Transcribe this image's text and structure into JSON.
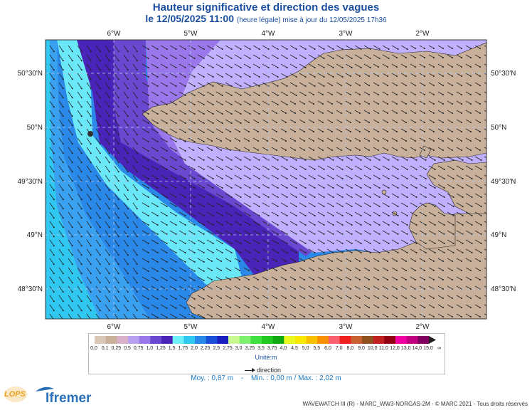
{
  "title": "Hauteur significative et direction des vagues",
  "subtitle": {
    "date": "le 12/05/2025 11:00",
    "note": "(heure légale) mise à jour du 12/05/2025 17h36"
  },
  "map": {
    "lon_labels": [
      "6°W",
      "5°W",
      "4°W",
      "3°W",
      "2°W"
    ],
    "lat_labels": [
      "50°30'N",
      "50°N",
      "49°30'N",
      "49°N",
      "48°30'N"
    ],
    "colors": {
      "land": "#c8b09a",
      "c1": "#c0b0ff",
      "c2": "#9a78ec",
      "c3": "#6a48d0",
      "c4": "#4a24b8",
      "c5": "#6ae8f8",
      "c6": "#30c8f0",
      "c7": "#3aa0f0",
      "c8": "#2a88e8",
      "grid": "#b8c8ee"
    }
  },
  "legend": {
    "scale": [
      "0,0",
      "0,1",
      "0,25",
      "0,5",
      "0,75",
      "1,0",
      "1,25",
      "1,5",
      "1,75",
      "2,0",
      "2,25",
      "2,5",
      "2,75",
      "3,0",
      "3,25",
      "3,5",
      "3,75",
      "4,0",
      "4,5",
      "5,0",
      "5,5",
      "6,0",
      "7,0",
      "8,0",
      "9,0",
      "10,0",
      "11,0",
      "12,0",
      "13,0",
      "14,0",
      "15,0",
      "∞"
    ],
    "colors": [
      "#d8c8b8",
      "#c8b09a",
      "#d8b0c8",
      "#b8a0f0",
      "#9a78ec",
      "#6a48d0",
      "#4a24b8",
      "#70f0f8",
      "#30c8f0",
      "#2a88e8",
      "#1a50d8",
      "#1a20c0",
      "#c8f890",
      "#80f070",
      "#40e040",
      "#20c820",
      "#10a810",
      "#e8f820",
      "#f8e800",
      "#f8c000",
      "#f89000",
      "#f86070",
      "#f02020",
      "#c86030",
      "#905020",
      "#c02020",
      "#900010",
      "#f000a0",
      "#c00080",
      "#800060"
    ],
    "unit": "Unité:m",
    "direction_label": "direction"
  },
  "stats": {
    "moy": "Moy. : 0,87 m",
    "sep": "-",
    "minmax": "Min. : 0,00 m / Max. : 2,02 m"
  },
  "footer": {
    "lops": "LOPS",
    "ifremer": "Ifremer",
    "copyright": "WAVEWATCH III (R) - MARC_WW3-NORGAS-2M - © MARC 2021 - Tous droits réservés"
  }
}
